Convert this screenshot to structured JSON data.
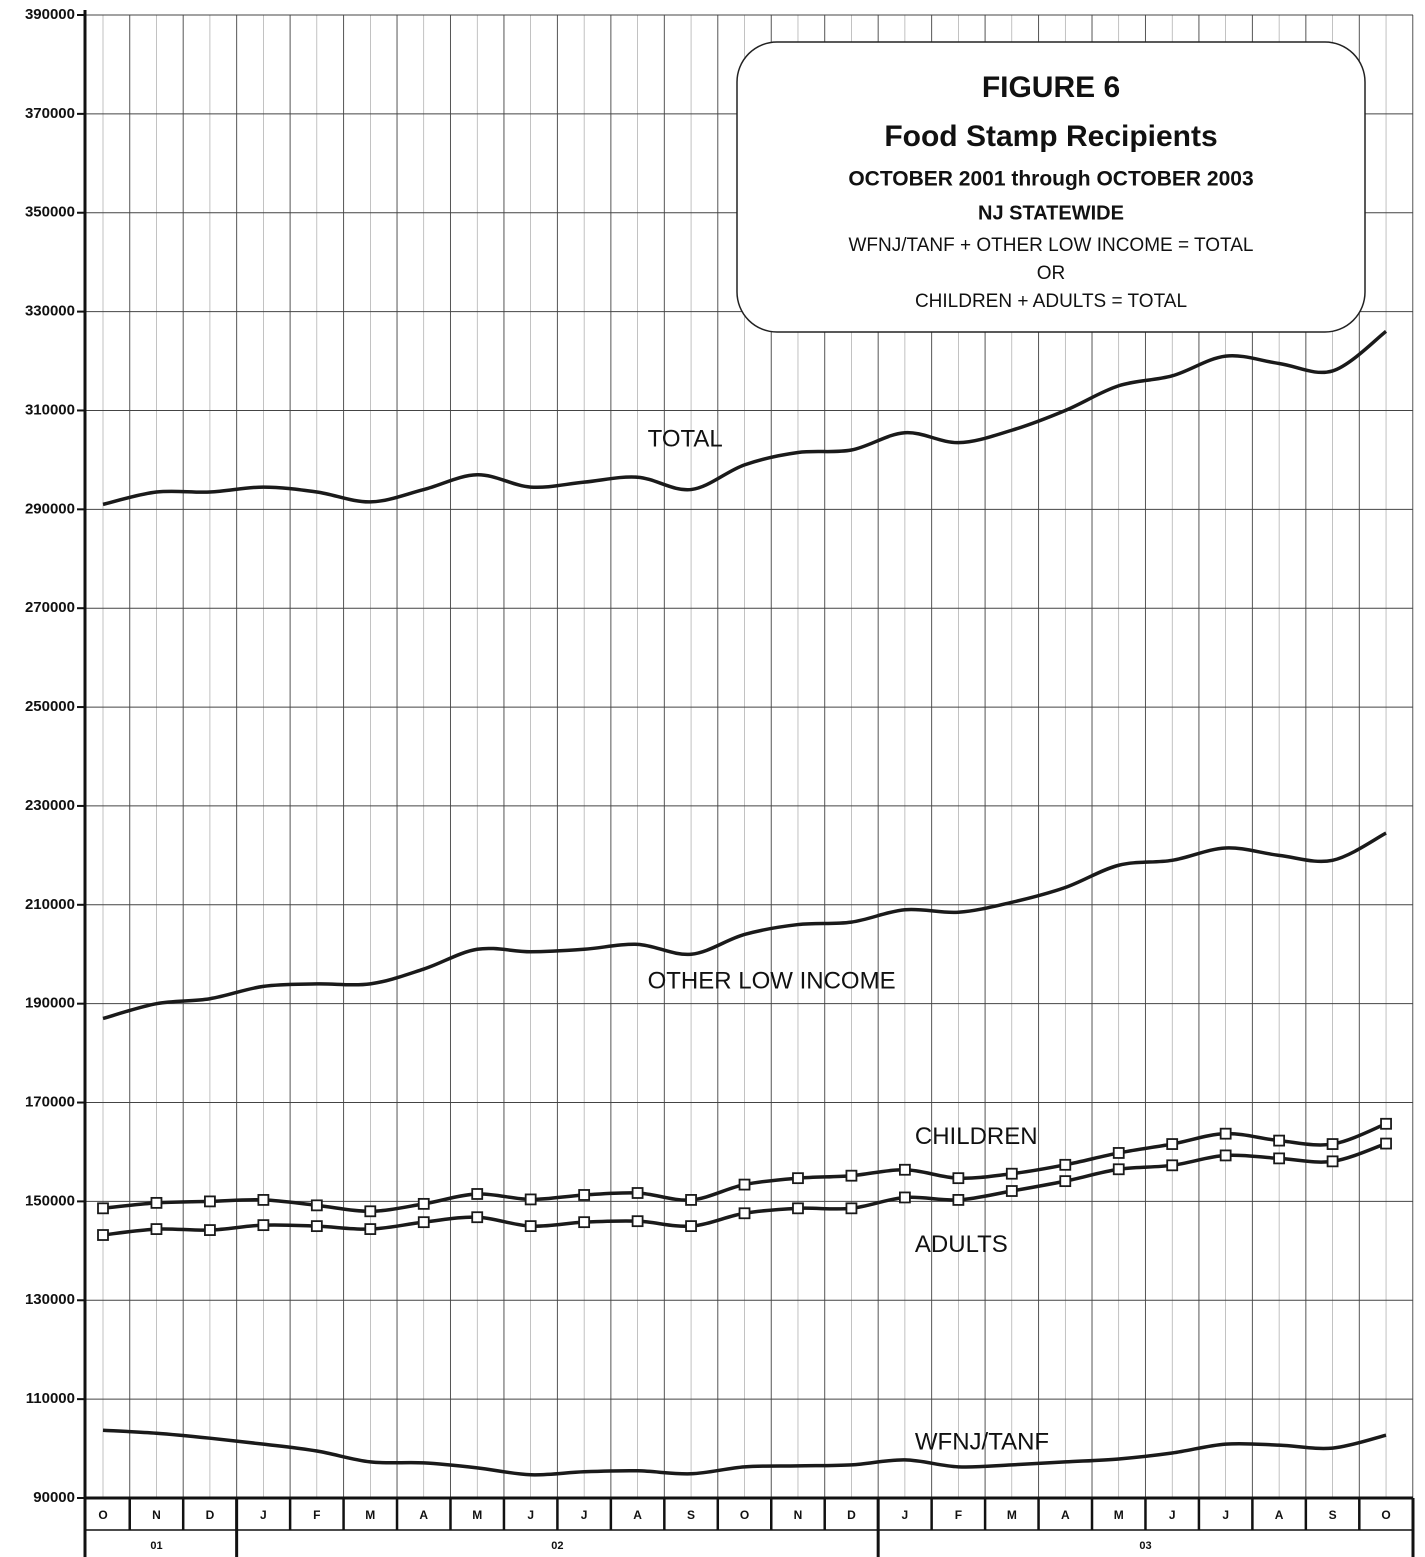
{
  "chart_data": {
    "type": "line",
    "title": "FIGURE 6",
    "subtitle": "Food Stamp Recipients",
    "annotations": [
      "OCTOBER 2001  through OCTOBER 2003",
      "NJ STATEWIDE",
      "WFNJ/TANF + OTHER LOW INCOME = TOTAL",
      "OR",
      "CHILDREN  + ADULTS = TOTAL"
    ],
    "categories": [
      "O",
      "N",
      "D",
      "J",
      "F",
      "M",
      "A",
      "M",
      "J",
      "J",
      "A",
      "S",
      "O",
      "N",
      "D",
      "J",
      "F",
      "M",
      "A",
      "M",
      "J",
      "J",
      "A",
      "S",
      "O"
    ],
    "year_groups": [
      {
        "label": "01",
        "months": 3
      },
      {
        "label": "02",
        "months": 12
      },
      {
        "label": "03",
        "months": 10
      }
    ],
    "ylim": [
      90000,
      390000
    ],
    "yticks": [
      90000,
      110000,
      130000,
      150000,
      170000,
      190000,
      210000,
      230000,
      250000,
      270000,
      290000,
      310000,
      330000,
      350000,
      370000,
      390000
    ],
    "grid": true,
    "series": [
      {
        "name": "TOTAL",
        "color": "#1a1a1a",
        "marker": "none",
        "values": [
          291000,
          293500,
          293500,
          294500,
          293500,
          291500,
          294000,
          297000,
          294500,
          295500,
          296500,
          294000,
          299000,
          301500,
          302000,
          305500,
          303500,
          306000,
          310000,
          315000,
          317000,
          321000,
          319500,
          318000,
          326000
        ]
      },
      {
        "name": "OTHER LOW INCOME",
        "color": "#1a1a1a",
        "marker": "none",
        "values": [
          187000,
          190000,
          191000,
          193500,
          194000,
          194000,
          197000,
          201000,
          200500,
          201000,
          202000,
          200000,
          204000,
          206000,
          206500,
          209000,
          208500,
          210500,
          213500,
          218000,
          219000,
          221500,
          220000,
          219000,
          224500
        ]
      },
      {
        "name": "CHILDREN",
        "color": "#1a1a1a",
        "marker": "square",
        "values": [
          148600,
          149700,
          150000,
          150300,
          149200,
          148000,
          149500,
          151500,
          150400,
          151300,
          151700,
          150300,
          153400,
          154700,
          155200,
          156400,
          154700,
          155600,
          157400,
          159800,
          161600,
          163700,
          162300,
          161600,
          165700
        ]
      },
      {
        "name": "ADULTS",
        "color": "#1a1a1a",
        "marker": "square",
        "values": [
          143200,
          144400,
          144200,
          145200,
          145000,
          144400,
          145800,
          146800,
          145000,
          145800,
          146000,
          145000,
          147600,
          148600,
          148600,
          150800,
          150300,
          152100,
          154100,
          156500,
          157300,
          159300,
          158700,
          158100,
          161700
        ]
      },
      {
        "name": "WFNJ/TANF",
        "color": "#1a1a1a",
        "marker": "none",
        "values": [
          103700,
          103100,
          102100,
          100900,
          99500,
          97300,
          97100,
          96100,
          94700,
          95300,
          95500,
          94900,
          96300,
          96500,
          96700,
          97700,
          96300,
          96700,
          97300,
          97900,
          99100,
          100900,
          100700,
          100100,
          102700
        ]
      }
    ]
  }
}
